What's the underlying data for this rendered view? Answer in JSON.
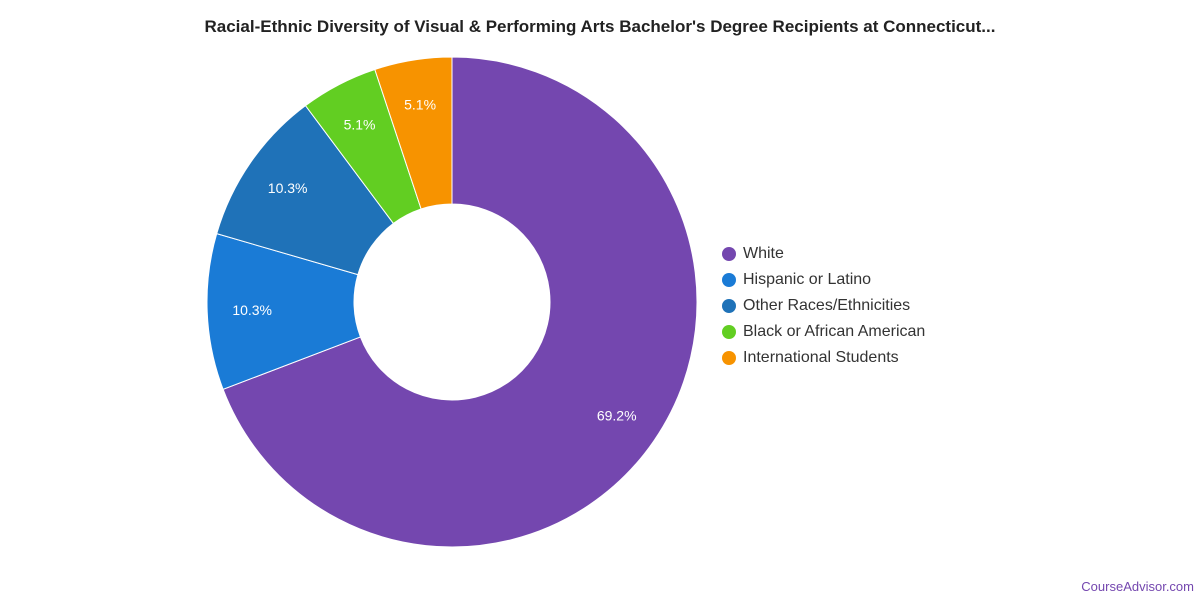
{
  "chart_data": {
    "type": "pie",
    "donut": true,
    "title": "Racial-Ethnic Diversity of Visual & Performing Arts Bachelor's Degree Recipients at Connecticut...",
    "categories": [
      "White",
      "Hispanic or Latino",
      "Other Races/Ethnicities",
      "Black or African American",
      "International Students"
    ],
    "values": [
      69.2,
      10.3,
      10.3,
      5.1,
      5.1
    ],
    "labels": [
      "69.2%",
      "10.3%",
      "10.3%",
      "5.1%",
      "5.1%"
    ],
    "colors": [
      "#7447af",
      "#1a7bd6",
      "#1f72b8",
      "#62ce22",
      "#f79300"
    ],
    "legend_position": "right"
  },
  "credit": "CourseAdvisor.com"
}
